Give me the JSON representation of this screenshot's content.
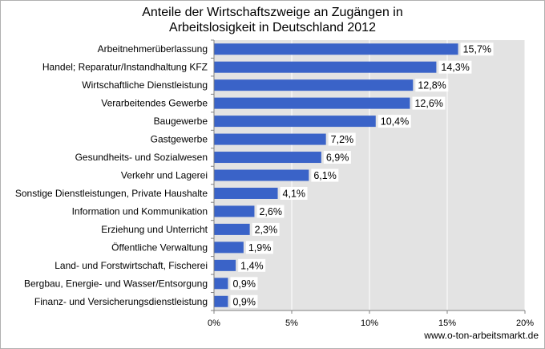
{
  "chart_data": {
    "type": "bar",
    "orientation": "horizontal",
    "title_lines": [
      "Anteile der Wirtschaftszweige an Zugängen in",
      "Arbeitslosigkeit in Deutschland 2012"
    ],
    "categories": [
      "Arbeitnehmerüberlassung",
      "Handel; Reparatur/Instandhaltung KFZ",
      "Wirtschaftliche Dienstleistung",
      "Verarbeitendes Gewerbe",
      "Baugewerbe",
      "Gastgewerbe",
      "Gesundheits- und Sozialwesen",
      "Verkehr und Lagerei",
      "Sonstige Dienstleistungen, Private Haushalte",
      "Information und Kommunikation",
      "Erziehung und Unterricht",
      "Öffentliche Verwaltung",
      "Land- und Forstwirtschaft, Fischerei",
      "Bergbau, Energie- und Wasser/Entsorgung",
      "Finanz- und Versicherungsdienstleistung"
    ],
    "values": [
      15.7,
      14.3,
      12.8,
      12.6,
      10.4,
      7.2,
      6.9,
      6.1,
      4.1,
      2.6,
      2.3,
      1.9,
      1.4,
      0.9,
      0.9
    ],
    "value_labels": [
      "15,7%",
      "14,3%",
      "12,8%",
      "12,6%",
      "10,4%",
      "7,2%",
      "6,9%",
      "6,1%",
      "4,1%",
      "2,6%",
      "2,3%",
      "1,9%",
      "1,4%",
      "0,9%",
      "0,9%"
    ],
    "xlim": [
      0,
      20
    ],
    "x_ticks": [
      0,
      5,
      10,
      15,
      20
    ],
    "x_tick_labels": [
      "0%",
      "5%",
      "10%",
      "15%",
      "20%"
    ],
    "grid": true,
    "legend": "none",
    "colors": {
      "bar": "#3a63c8",
      "plot_background": "#e3e3e3",
      "gridline": "#ffffff",
      "axis": "#808080"
    }
  },
  "source": "www.o-ton-arbeitsmarkt.de"
}
